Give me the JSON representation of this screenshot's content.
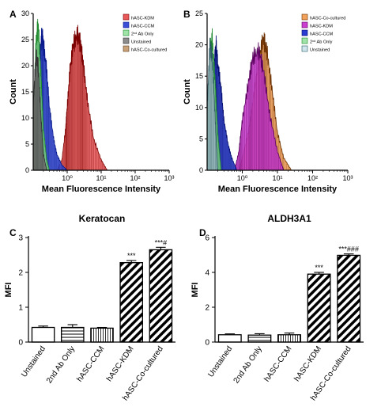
{
  "chart_data": [
    {
      "panel": "A",
      "type": "area",
      "title": "",
      "xlabel": "Mean Fluorescence Intensity",
      "ylabel": "Count",
      "x_scale": "log",
      "xlim": [
        0.1,
        1000
      ],
      "ylim": [
        0,
        30
      ],
      "y_ticks": [
        0,
        5,
        10,
        15,
        20,
        25,
        30
      ],
      "x_tick_labels": [
        "10⁰",
        "10¹",
        "10²",
        "10³"
      ],
      "legend_position": "top-right",
      "series": [
        {
          "name": "hASC-KDM",
          "color": "#e8595a",
          "outline": "#7a0000",
          "x": [
            0.5,
            0.7,
            0.9,
            1.0,
            1.2,
            1.5,
            2.0,
            2.5,
            3.0,
            4.0,
            6.0,
            10.0,
            15.0
          ],
          "y": [
            0,
            2,
            8,
            12,
            19,
            24,
            26,
            24,
            20,
            13,
            6,
            2,
            0
          ]
        },
        {
          "name": "hASC-CCM",
          "color": "#3a4fd6",
          "outline": "#0a1a8c",
          "x": [
            0.12,
            0.14,
            0.16,
            0.18,
            0.2,
            0.25,
            0.3,
            0.4,
            0.5,
            0.7,
            1.0
          ],
          "y": [
            5,
            16,
            22,
            26,
            24,
            19,
            12,
            6,
            3,
            1,
            0
          ]
        },
        {
          "name": "2ⁿᵈ Ab Only",
          "color": "#9fe3a8",
          "outline": "#1f8a2e",
          "x": [
            0.1,
            0.12,
            0.14,
            0.17,
            0.2,
            0.25,
            0.3
          ],
          "y": [
            10,
            24,
            28,
            18,
            8,
            2,
            0
          ]
        },
        {
          "name": "Unstained",
          "color": "#8c8c8c",
          "outline": "#333333",
          "x": [
            0.1,
            0.12,
            0.14,
            0.17,
            0.2,
            0.25
          ],
          "y": [
            12,
            22,
            20,
            10,
            3,
            0
          ]
        },
        {
          "name": "hASC-Co-cultured",
          "color": "#c9a27a",
          "outline": "#5a3a1a",
          "x": [],
          "y": []
        }
      ]
    },
    {
      "panel": "B",
      "type": "area",
      "title": "",
      "xlabel": "Mean Fluorescence Intensity",
      "ylabel": "Count",
      "x_scale": "log",
      "xlim": [
        0.1,
        1000
      ],
      "ylim": [
        0,
        25
      ],
      "y_ticks": [
        0,
        5,
        10,
        15,
        20,
        25
      ],
      "x_tick_labels": [
        "10⁰",
        "10¹",
        "10²",
        "10³"
      ],
      "legend_position": "top-right",
      "series": [
        {
          "name": "hASC-Co-cultured",
          "color": "#f2a25a",
          "outline": "#6a3000",
          "x": [
            0.8,
            1.0,
            1.5,
            2.0,
            3.0,
            4.0,
            5.0,
            7.0,
            10.0,
            15.0,
            25.0
          ],
          "y": [
            0,
            2,
            6,
            11,
            18,
            21,
            19,
            13,
            6,
            2,
            0
          ]
        },
        {
          "name": "hASC-KDM",
          "color": "#cc3ed0",
          "outline": "#5a005e",
          "x": [
            0.6,
            0.8,
            1.0,
            1.5,
            2.0,
            3.0,
            4.0,
            6.0,
            10.0,
            15.0
          ],
          "y": [
            0,
            3,
            8,
            14,
            18,
            19,
            16,
            9,
            3,
            0
          ]
        },
        {
          "name": "hASC-CCM",
          "color": "#2a3cd0",
          "outline": "#050f70",
          "x": [
            0.12,
            0.14,
            0.16,
            0.18,
            0.2,
            0.25,
            0.3,
            0.4,
            0.5,
            0.7
          ],
          "y": [
            3,
            12,
            17,
            20,
            17,
            13,
            8,
            4,
            2,
            0
          ]
        },
        {
          "name": "2ⁿᵈ Ab Only",
          "color": "#9fe3a8",
          "outline": "#1f8a2e",
          "x": [
            0.1,
            0.12,
            0.14,
            0.17,
            0.2,
            0.25
          ],
          "y": [
            9,
            19,
            21,
            14,
            6,
            0
          ]
        },
        {
          "name": "Unstained",
          "color": "#cfe6ec",
          "outline": "#2e5a66",
          "x": [
            0.1,
            0.12,
            0.14,
            0.17,
            0.2
          ],
          "y": [
            10,
            20,
            18,
            8,
            0
          ]
        }
      ]
    },
    {
      "panel": "C",
      "type": "bar",
      "title": "Keratocan",
      "xlabel": "",
      "ylabel": "MFI",
      "ylim": [
        0,
        3
      ],
      "y_ticks": [
        0,
        1,
        2,
        3
      ],
      "categories": [
        "Unstained",
        "2nd Ab Only",
        "hASC-CCM",
        "hASC-KDM",
        "hASC-Co-cultured"
      ],
      "values": [
        0.42,
        0.42,
        0.4,
        2.28,
        2.65
      ],
      "errors": [
        0.04,
        0.08,
        0.02,
        0.06,
        0.07
      ],
      "patterns": [
        "none",
        "horizontal",
        "vertical",
        "diagonal",
        "diagonal"
      ],
      "annotations": [
        "",
        "",
        "",
        "***",
        "***#"
      ]
    },
    {
      "panel": "D",
      "type": "bar",
      "title": "ALDH3A1",
      "xlabel": "",
      "ylabel": "MFI",
      "ylim": [
        0,
        6
      ],
      "y_ticks": [
        0,
        2,
        4,
        6
      ],
      "categories": [
        "Unstained",
        "2nd Ab Only",
        "hASC-CCM",
        "hASC-KDM",
        "hASC-Co-cultured"
      ],
      "values": [
        0.42,
        0.4,
        0.42,
        3.9,
        4.98
      ],
      "errors": [
        0.05,
        0.08,
        0.1,
        0.1,
        0.08
      ],
      "patterns": [
        "none",
        "horizontal",
        "vertical",
        "diagonal",
        "diagonal"
      ],
      "annotations": [
        "",
        "",
        "",
        "***",
        "***###"
      ]
    }
  ]
}
